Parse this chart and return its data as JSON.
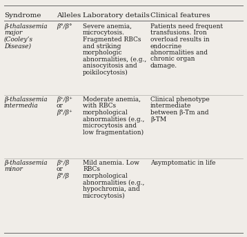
{
  "headers": [
    "Syndrome",
    "Alleles",
    "Laboratory details",
    "Clinical features"
  ],
  "rows": [
    {
      "syndrome": "β-thalassemia\nmajor\n(Cooley’s\nDisease)",
      "alleles": "β°/β°",
      "lab": "Severe anemia,\nmicrocytosis.\nFragmented RBCs\nand striking\nmorphologic\nabnormalities, (e.g.,\nanisocyitosis and\npoikilocytosis)",
      "clinical": "Patients need frequent\ntransfusions. Iron\noverload results in\nendocrine\nabnormalities and\nchronic organ\ndamage."
    },
    {
      "syndrome": "β-thalassemia\nintermedia",
      "alleles": "β⁺/β⁺\nor\nβ°/β⁺",
      "lab": "Moderate anemia,\nwith RBCs\nmorphological\nabnormalities (e.g.,\nmicrocytosis and\nlow fragmentation)",
      "clinical": "Clinical phenotype\nintermediate\nbetween β-Tm and\nβ-TM"
    },
    {
      "syndrome": "β-thalassemia\nminor",
      "alleles": "β⁺/β\nor\nβ°/β",
      "lab": "Mild anemia. Low\nRBCs\nmorphological\nabnormalities (e.g.,\nhypochromia, and\nmicrocytosis)",
      "clinical": "Asymptomatic in life"
    }
  ],
  "background": "#f0ede8",
  "text_color": "#1a1a1a",
  "line_color": "#666666",
  "header_fontsize": 7.5,
  "cell_fontsize": 6.5
}
